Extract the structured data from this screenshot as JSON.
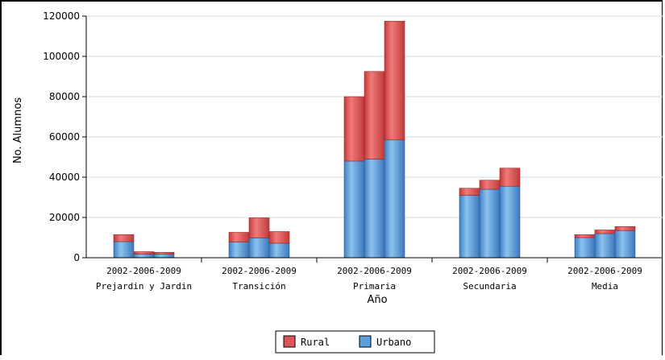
{
  "chart_data": {
    "type": "bar",
    "stacked": true,
    "title": "",
    "xlabel": "Año",
    "ylabel": "No. Alumnos",
    "ylim": [
      0,
      120000
    ],
    "yticks": [
      "0",
      "20000",
      "40000",
      "60000",
      "80000",
      "100000",
      "120000"
    ],
    "grid": true,
    "legend_position": "bottom",
    "groups": [
      {
        "years_label": "2002-2006-2009",
        "name": "Prejardin y Jardin",
        "urbano": [
          8000,
          1800,
          1700
        ],
        "rural": [
          3500,
          1200,
          1000
        ]
      },
      {
        "years_label": "2002-2006-2009",
        "name": "Transición",
        "urbano": [
          7800,
          9800,
          7200
        ],
        "rural": [
          4800,
          10000,
          5800
        ]
      },
      {
        "years_label": "2002-2006-2009",
        "name": "Primaria",
        "urbano": [
          48000,
          49000,
          58500
        ],
        "rural": [
          32000,
          43500,
          59000
        ]
      },
      {
        "years_label": "2002-2006-2009",
        "name": "Secundaria",
        "urbano": [
          31000,
          34000,
          35500
        ],
        "rural": [
          3500,
          4500,
          9000
        ]
      },
      {
        "years_label": "2002-2006-2009",
        "name": "Media",
        "urbano": [
          10000,
          12000,
          13500
        ],
        "rural": [
          1500,
          1800,
          2000
        ]
      }
    ],
    "series": [
      {
        "name": "Rural",
        "color": "#e05656"
      },
      {
        "name": "Urbano",
        "color": "#5b9fdf"
      }
    ]
  }
}
